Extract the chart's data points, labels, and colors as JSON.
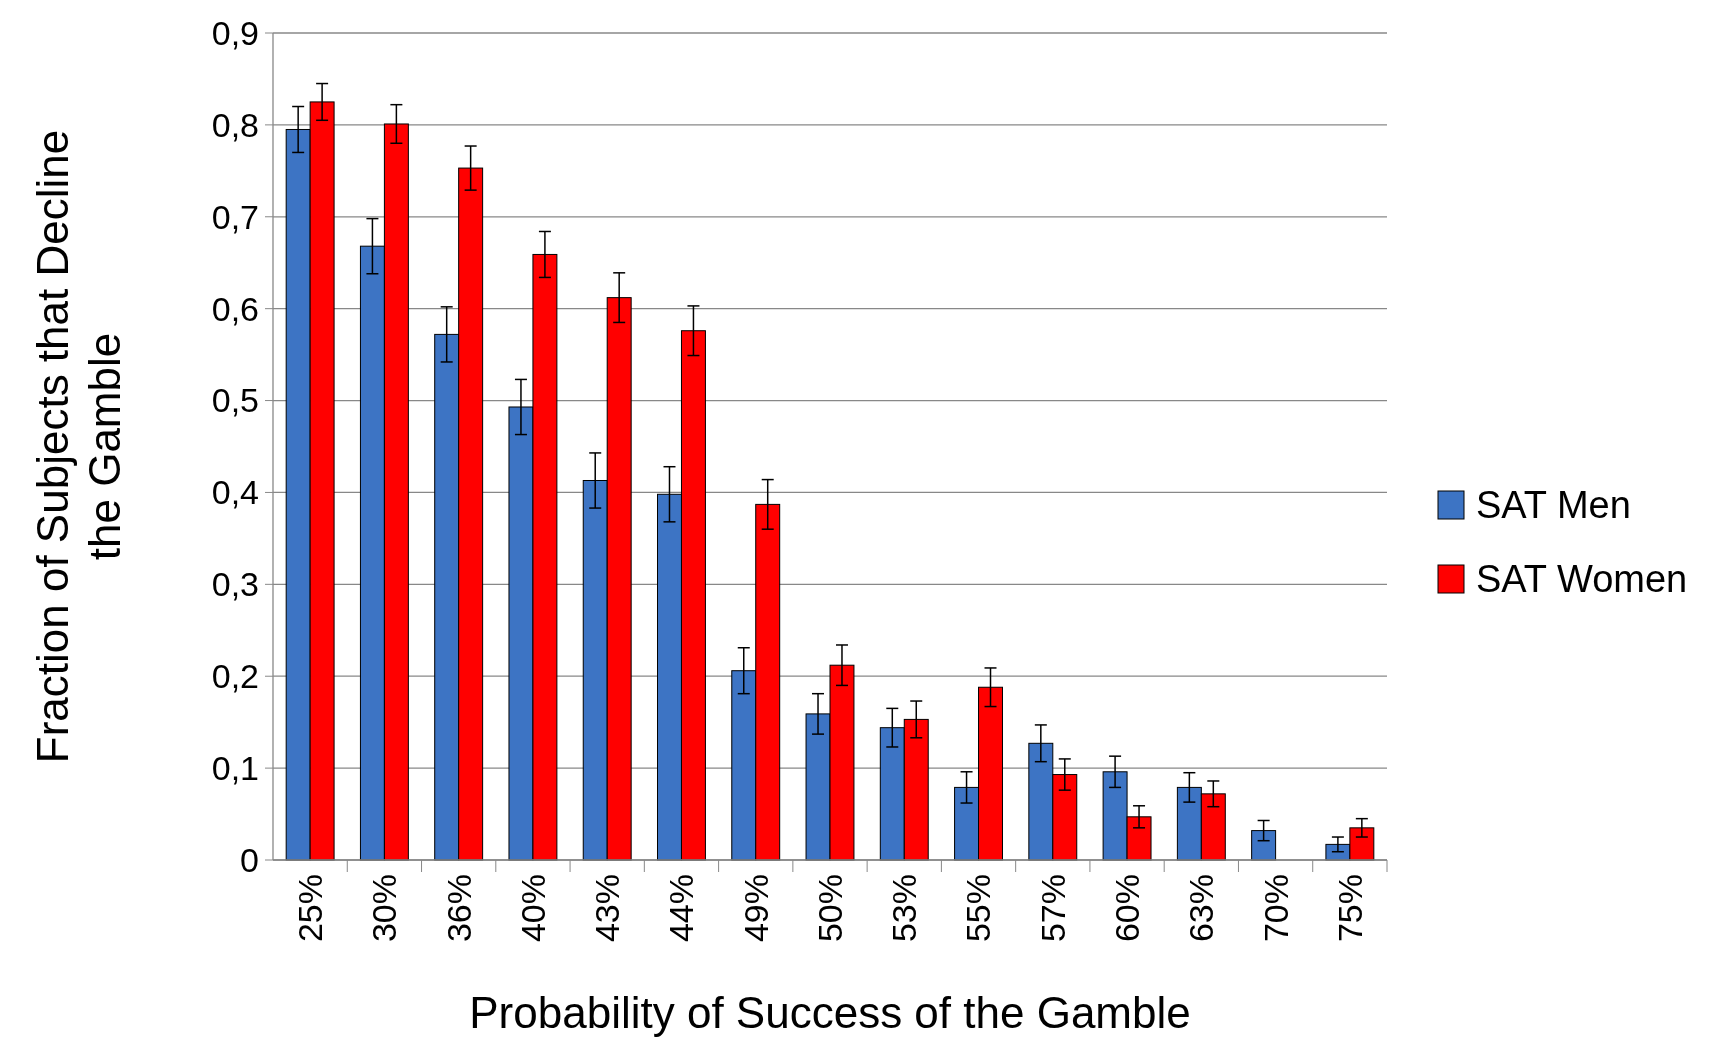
{
  "chart_data": {
    "type": "bar",
    "xlabel": "Probability of Success of the Gamble",
    "ylabel": "Fraction of Subjects that Decline the Gamble",
    "categories": [
      "25%",
      "30%",
      "36%",
      "40%",
      "43%",
      "44%",
      "49%",
      "50%",
      "53%",
      "55%",
      "57%",
      "60%",
      "63%",
      "70%",
      "75%"
    ],
    "series": [
      {
        "name": "SAT Men",
        "color": "#3d74c4",
        "values": [
          0.795,
          0.668,
          0.572,
          0.493,
          0.413,
          0.398,
          0.206,
          0.159,
          0.144,
          0.079,
          0.127,
          0.096,
          0.079,
          0.032,
          0.017
        ],
        "errors": [
          0.025,
          0.03,
          0.03,
          0.03,
          0.03,
          0.03,
          0.025,
          0.022,
          0.021,
          0.017,
          0.02,
          0.017,
          0.016,
          0.011,
          0.008
        ]
      },
      {
        "name": "SAT Women",
        "color": "#ff0000",
        "values": [
          0.825,
          0.801,
          0.753,
          0.659,
          0.612,
          0.576,
          0.387,
          0.212,
          0.153,
          0.188,
          0.093,
          0.047,
          0.072,
          0,
          0.035
        ],
        "errors": [
          0.02,
          0.021,
          0.024,
          0.025,
          0.027,
          0.027,
          0.027,
          0.022,
          0.02,
          0.021,
          0.017,
          0.012,
          0.014,
          null,
          0.01
        ]
      }
    ],
    "ylim": [
      0,
      0.9
    ],
    "yticks": [
      0,
      {
        "value": 0.1,
        "label": "0,1"
      },
      {
        "value": 0.2,
        "label": "0,2"
      },
      {
        "value": 0.3,
        "label": "0,3"
      },
      {
        "value": 0.4,
        "label": "0,4"
      },
      {
        "value": 0.5,
        "label": "0,5"
      },
      {
        "value": 0.6,
        "label": "0,6"
      },
      {
        "value": 0.7,
        "label": "0,7"
      },
      {
        "value": 0.8,
        "label": "0,8"
      },
      {
        "value": 0.9,
        "label": "0,9"
      }
    ],
    "grid": "y",
    "legend": "right"
  }
}
